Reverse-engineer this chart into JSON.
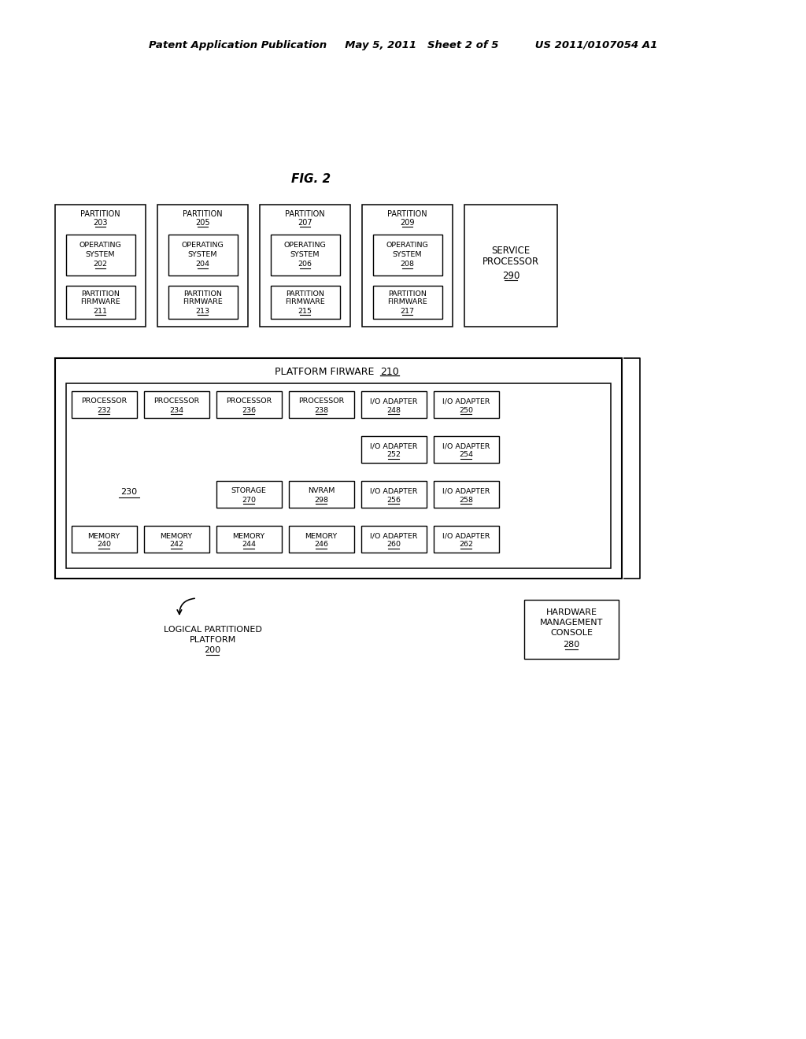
{
  "bg_color": "#ffffff",
  "header": "Patent Application Publication     May 5, 2011   Sheet 2 of 5          US 2011/0107054 A1",
  "fig_label": "FIG. 2",
  "partitions": [
    {
      "num": "203",
      "os_num": "202",
      "fw_num": "211"
    },
    {
      "num": "205",
      "os_num": "204",
      "fw_num": "213"
    },
    {
      "num": "207",
      "os_num": "206",
      "fw_num": "215"
    },
    {
      "num": "209",
      "os_num": "208",
      "fw_num": "217"
    }
  ],
  "sp_num": "290",
  "platform_text": "PLATFORM FIRWARE",
  "platform_num": "210",
  "inner_num": "230",
  "proc_nums": [
    "232",
    "234",
    "236",
    "238"
  ],
  "io_r1": [
    "248",
    "250"
  ],
  "io_r2": [
    "252",
    "254"
  ],
  "storage_num": "270",
  "nvram_num": "298",
  "io_r3": [
    "256",
    "258"
  ],
  "mem_nums": [
    "240",
    "242",
    "244",
    "246"
  ],
  "io_r4": [
    "260",
    "262"
  ],
  "lpp_lines": [
    "LOGICAL PARTITIONED",
    "PLATFORM",
    "200"
  ],
  "hmc_lines": [
    "HARDWARE",
    "MANAGEMENT",
    "CONSOLE",
    "280"
  ]
}
